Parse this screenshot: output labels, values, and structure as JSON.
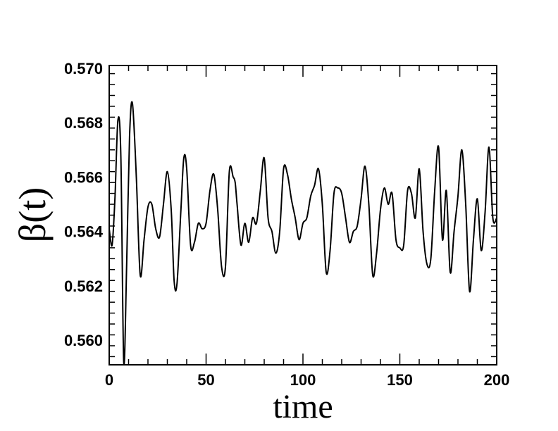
{
  "chart_data": {
    "type": "line",
    "xlabel": "time",
    "ylabel": "β(t)",
    "xlim": [
      0,
      200
    ],
    "ylim": [
      0.5591,
      0.5701
    ],
    "x_ticks": [
      0,
      50,
      100,
      150,
      200
    ],
    "x_tick_labels": [
      "0",
      "50",
      "100",
      "150",
      "200"
    ],
    "y_ticks": [
      0.56,
      0.562,
      0.564,
      0.566,
      0.568,
      0.57
    ],
    "y_tick_labels": [
      "0.560",
      "0.562",
      "0.564",
      "0.566",
      "0.568",
      "0.570"
    ],
    "grid": false,
    "line_color": "#000000",
    "series": [
      {
        "x": [
          0,
          1.5,
          3,
          4.5,
          6,
          7.5,
          9,
          10.5,
          12,
          14,
          16,
          18,
          20,
          22,
          24,
          26,
          28,
          30,
          32,
          33.5,
          35,
          37,
          38.5,
          40,
          42,
          44,
          46,
          48,
          50,
          52,
          54,
          56,
          58,
          60,
          62,
          64,
          65,
          66,
          68,
          70,
          72,
          74,
          76,
          78,
          80,
          82,
          84,
          86,
          88,
          90,
          92,
          94,
          96,
          98,
          100,
          102,
          104,
          106,
          108,
          110,
          112,
          114,
          116,
          118,
          120,
          122,
          124,
          126,
          128,
          130,
          132,
          134,
          136,
          138,
          140,
          142,
          144,
          146,
          148,
          150,
          152,
          154,
          156,
          158,
          160,
          162,
          164,
          166,
          168,
          170,
          172,
          174,
          176,
          178,
          180,
          182,
          184,
          186,
          188,
          190,
          192,
          194,
          196,
          198,
          200
        ],
        "y": [
          0.5641,
          0.5635,
          0.5653,
          0.5681,
          0.5668,
          0.5592,
          0.5628,
          0.5675,
          0.5687,
          0.566,
          0.5624,
          0.5637,
          0.5649,
          0.565,
          0.5641,
          0.5638,
          0.565,
          0.5662,
          0.5648,
          0.5622,
          0.5621,
          0.5648,
          0.5667,
          0.5663,
          0.5635,
          0.5636,
          0.5643,
          0.5641,
          0.5643,
          0.5655,
          0.5661,
          0.5648,
          0.5627,
          0.5627,
          0.5662,
          0.566,
          0.5658,
          0.565,
          0.5635,
          0.5643,
          0.5636,
          0.5645,
          0.5643,
          0.5655,
          0.5667,
          0.5645,
          0.564,
          0.5632,
          0.564,
          0.5663,
          0.5661,
          0.5652,
          0.5645,
          0.5637,
          0.5643,
          0.5645,
          0.5653,
          0.5657,
          0.5663,
          0.565,
          0.5625,
          0.5633,
          0.5654,
          0.5656,
          0.5654,
          0.5645,
          0.5636,
          0.564,
          0.5642,
          0.5652,
          0.5664,
          0.565,
          0.5624,
          0.5632,
          0.5648,
          0.5656,
          0.565,
          0.5654,
          0.5637,
          0.5634,
          0.5635,
          0.5655,
          0.5654,
          0.5645,
          0.5663,
          0.564,
          0.5628,
          0.563,
          0.5655,
          0.5671,
          0.5637,
          0.5655,
          0.5625,
          0.564,
          0.5653,
          0.567,
          0.565,
          0.5618,
          0.5637,
          0.5652,
          0.5633,
          0.5647,
          0.5671,
          0.5645,
          0.5645
        ]
      }
    ]
  }
}
